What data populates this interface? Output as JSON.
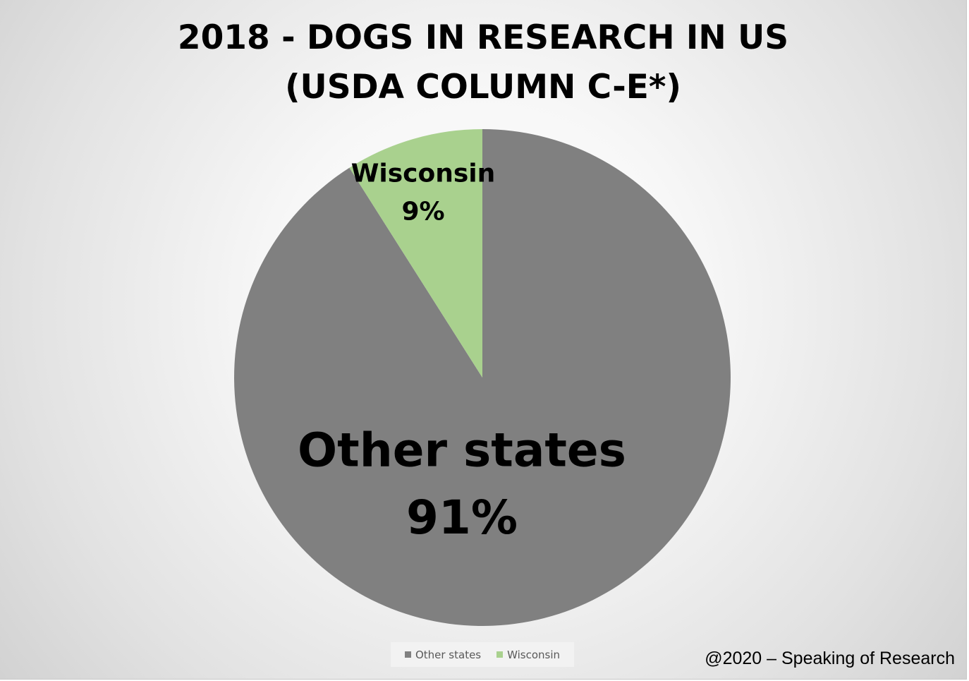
{
  "chart_data": {
    "type": "pie",
    "title_lines": [
      "2018 - DOGS IN RESEARCH IN US",
      "(USDA COLUMN C-E*)"
    ],
    "slices": [
      {
        "name": "Other states",
        "value": 91,
        "label": "91%",
        "color": "#808080"
      },
      {
        "name": "Wisconsin",
        "value": 9,
        "label": "9%",
        "color": "#a9d18e"
      }
    ],
    "legend_position": "bottom",
    "start_angle": "12 o'clock",
    "direction": "clockwise"
  },
  "footer": {
    "credit": "@2020 – Speaking of Research"
  }
}
